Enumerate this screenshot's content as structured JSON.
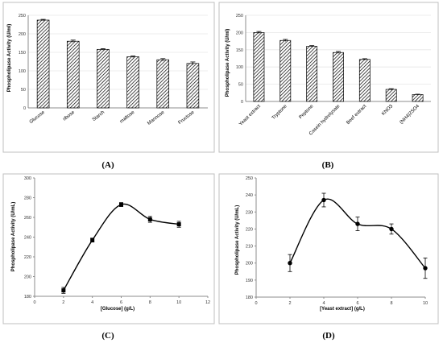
{
  "chart_data": [
    {
      "id": "A",
      "type": "bar",
      "panel_label": "(A)",
      "ylabel": "Phospholipase Activity (U/ml)",
      "xlabel": "",
      "ylim": [
        0,
        250
      ],
      "yticks": [
        0,
        50,
        100,
        150,
        200,
        250
      ],
      "grid": true,
      "categories": [
        "Glucose",
        "ribose",
        "Starch",
        "maltose",
        "Mannose",
        "Fructose"
      ],
      "values": [
        237,
        180,
        158,
        138,
        130,
        120
      ],
      "errors": [
        2,
        3,
        2,
        2,
        3,
        4
      ]
    },
    {
      "id": "B",
      "type": "bar",
      "panel_label": "(B)",
      "ylabel": "Phospholipase Activity (U/ml)",
      "xlabel": "",
      "ylim": [
        0,
        250
      ],
      "yticks": [
        0,
        50,
        100,
        150,
        200,
        250
      ],
      "grid": true,
      "categories": [
        "Yeast extract",
        "Tryptone",
        "Peptone",
        "Casein hydrolysate",
        "Beef extract",
        "KNO3",
        "(NH4)2SO4"
      ],
      "values": [
        200,
        177,
        160,
        142,
        122,
        35,
        20
      ],
      "errors": [
        3,
        3,
        2,
        3,
        2,
        2,
        1
      ]
    },
    {
      "id": "C",
      "type": "line",
      "panel_label": "(C)",
      "ylabel": "Phospholipase Activity (U/mL)",
      "xlabel": "[Glucose] (g/L)",
      "xlim": [
        0,
        12
      ],
      "ylim": [
        180,
        300
      ],
      "xticks": [
        0,
        2,
        4,
        6,
        8,
        10,
        12
      ],
      "yticks": [
        180,
        200,
        220,
        240,
        260,
        280,
        300
      ],
      "grid": false,
      "marker": "square",
      "x": [
        2,
        4,
        6,
        8,
        10
      ],
      "y": [
        186,
        237,
        273,
        258,
        253
      ],
      "errors": [
        3,
        2,
        2,
        3,
        3
      ]
    },
    {
      "id": "D",
      "type": "line",
      "panel_label": "(D)",
      "ylabel": "Phospholipase Activity (U/mL)",
      "xlabel": "[Yeast extract] (g/L)",
      "xlim": [
        0,
        10
      ],
      "ylim": [
        180,
        250
      ],
      "xticks": [
        0,
        2,
        4,
        6,
        8,
        10
      ],
      "yticks": [
        180,
        190,
        200,
        210,
        220,
        230,
        240,
        250
      ],
      "grid": false,
      "marker": "circle",
      "x": [
        2,
        4,
        6,
        8,
        10
      ],
      "y": [
        200,
        237,
        223,
        220,
        197
      ],
      "errors": [
        5,
        4,
        4,
        3,
        6
      ]
    }
  ]
}
